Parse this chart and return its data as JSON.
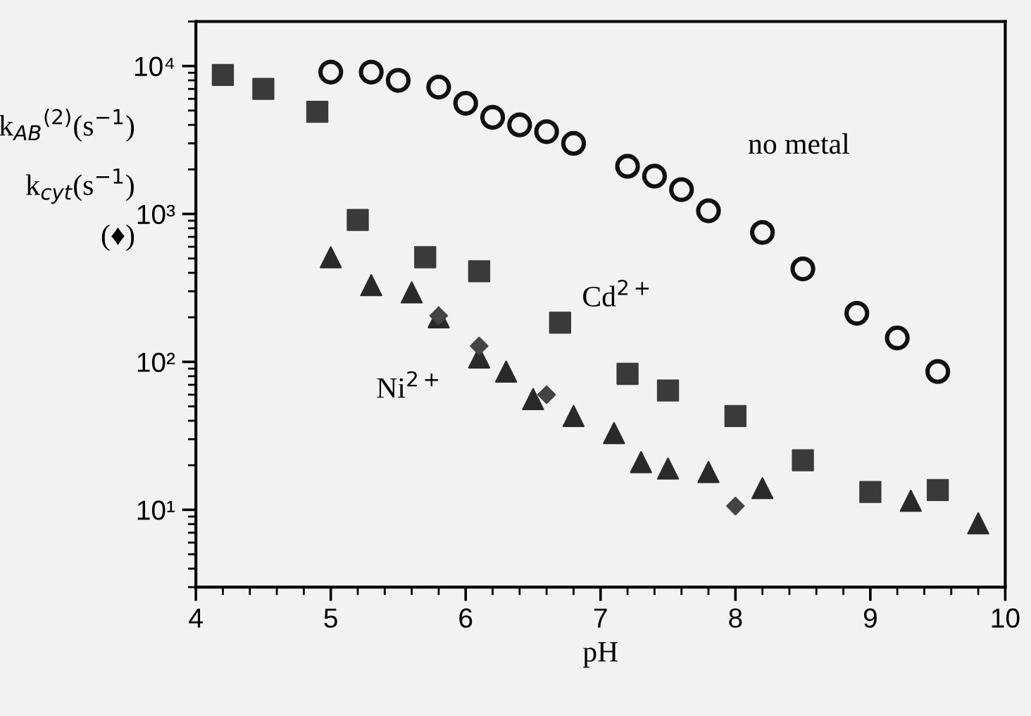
{
  "chart_data": {
    "type": "scatter",
    "xlabel": "pH",
    "ylabel": "k$_{AB}$$^{(2)}$(s$^{−1}$)\nk$_{cyt}$(s$^{−1}$)\n(♦)",
    "log": "y",
    "xlim": [
      4,
      10
    ],
    "ylim": [
      3,
      20000
    ],
    "xticks": [
      4,
      5,
      6,
      7,
      8,
      9,
      10
    ],
    "yticks": [
      {
        "value": 10,
        "label": "10¹"
      },
      {
        "value": 100,
        "label": "10²"
      },
      {
        "value": 1000,
        "label": "10³"
      },
      {
        "value": 10000,
        "label": "10⁴"
      }
    ],
    "grid": false,
    "legend": false,
    "series": [
      {
        "name": "no metal",
        "marker": "circle",
        "color": "#111111",
        "x": [
          5.0,
          5.3,
          5.5,
          5.8,
          6.0,
          6.2,
          6.4,
          6.6,
          6.8,
          7.2,
          7.4,
          7.6,
          7.8,
          8.2,
          8.5,
          8.9,
          9.2,
          9.5
        ],
        "values": [
          9100,
          9100,
          8000,
          7200,
          5600,
          4500,
          4000,
          3600,
          3000,
          2100,
          1800,
          1460,
          1050,
          750,
          425,
          213,
          145,
          86
        ]
      },
      {
        "name": "Cd$^{2+}$",
        "marker": "square",
        "color": "#3a3a3a",
        "x": [
          4.2,
          4.5,
          4.9,
          5.2,
          5.7,
          6.1,
          6.7,
          7.2,
          7.5,
          8.0,
          8.5,
          9.0,
          9.5
        ],
        "values": [
          8700,
          7000,
          4900,
          910,
          510,
          410,
          184,
          83,
          64,
          43,
          21.6,
          13.2,
          13.6
        ]
      },
      {
        "name": "Ni$^{2+}$",
        "marker": "triangle",
        "color": "#2a2a2a",
        "x": [
          5.0,
          5.3,
          5.6,
          5.8,
          6.1,
          6.3,
          6.5,
          6.8,
          7.1,
          7.3,
          7.5,
          7.8,
          8.2,
          9.3,
          9.8
        ],
        "values": [
          510,
          330,
          295,
          200,
          107,
          86,
          56,
          43,
          33,
          21,
          19,
          18,
          14,
          11.5,
          8.1
        ]
      },
      {
        "marker": "diamond",
        "color": "#444444",
        "x": [
          5.8,
          6.1,
          6.6,
          8.0
        ],
        "values": [
          205,
          128,
          60,
          10.6
        ]
      }
    ]
  }
}
